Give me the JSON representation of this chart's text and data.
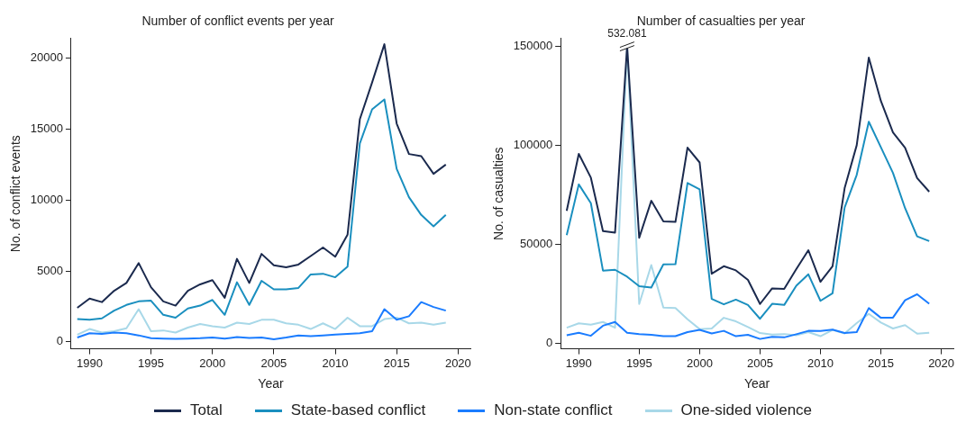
{
  "chart_data": [
    {
      "type": "line",
      "title": "Number of conflict events per year",
      "xlabel": "Year",
      "ylabel": "No. of conflict events",
      "x": [
        1989,
        1990,
        1991,
        1992,
        1993,
        1994,
        1995,
        1996,
        1997,
        1998,
        1999,
        2000,
        2001,
        2002,
        2003,
        2004,
        2005,
        2006,
        2007,
        2008,
        2009,
        2010,
        2011,
        2012,
        2013,
        2014,
        2015,
        2016,
        2017,
        2018,
        2019
      ],
      "series": [
        {
          "name": "Total",
          "color": "#1b2a4e",
          "values": [
            2400,
            3050,
            2800,
            3600,
            4150,
            5550,
            3850,
            2850,
            2550,
            3600,
            4050,
            4350,
            3100,
            5850,
            4150,
            6200,
            5400,
            5250,
            5450,
            6050,
            6650,
            6000,
            7550,
            15700,
            18300,
            21000,
            15400,
            13250,
            13100,
            11850,
            12500
          ]
        },
        {
          "name": "State-based conflict",
          "color": "#1a8fbf",
          "values": [
            1600,
            1550,
            1650,
            2200,
            2600,
            2850,
            2900,
            1900,
            1700,
            2350,
            2550,
            2950,
            1900,
            4200,
            2600,
            4300,
            3700,
            3700,
            3800,
            4750,
            4800,
            4550,
            5300,
            14000,
            16400,
            17100,
            12200,
            10200,
            8950,
            8150,
            8950
          ]
        },
        {
          "name": "Non-state conflict",
          "color": "#1a7cff",
          "values": [
            300,
            600,
            550,
            650,
            600,
            450,
            250,
            220,
            200,
            220,
            250,
            300,
            220,
            330,
            270,
            300,
            180,
            300,
            450,
            400,
            450,
            500,
            550,
            600,
            750,
            2300,
            1550,
            1800,
            2800,
            2450,
            2200
          ]
        },
        {
          "name": "One-sided violence",
          "color": "#a8d8e8",
          "values": [
            500,
            900,
            650,
            750,
            950,
            2300,
            750,
            800,
            650,
            1000,
            1250,
            1100,
            1000,
            1350,
            1250,
            1550,
            1550,
            1300,
            1200,
            900,
            1300,
            900,
            1700,
            1100,
            1100,
            1600,
            1700,
            1300,
            1350,
            1200,
            1350
          ]
        }
      ],
      "xlim": [
        1988.5,
        2021
      ],
      "xticks": [
        1990,
        1995,
        2000,
        2005,
        2010,
        2015,
        2020
      ],
      "ylim": [
        -500,
        21400
      ],
      "yticks": [
        0,
        5000,
        10000,
        15000,
        20000
      ],
      "grid": false,
      "legend": "bottom",
      "marker": "none",
      "line_style": "solid"
    },
    {
      "type": "line",
      "title": "Number of casualties per year",
      "xlabel": "Year",
      "ylabel": "No. of casualties",
      "x": [
        1989,
        1990,
        1991,
        1992,
        1993,
        1994,
        1995,
        1996,
        1997,
        1998,
        1999,
        2000,
        2001,
        2002,
        2003,
        2004,
        2005,
        2006,
        2007,
        2008,
        2009,
        2010,
        2011,
        2012,
        2013,
        2014,
        2015,
        2016,
        2017,
        2018,
        2019
      ],
      "series": [
        {
          "name": "Total",
          "color": "#1b2a4e",
          "values": [
            66800,
            95600,
            83600,
            56600,
            55800,
            150000,
            53200,
            71900,
            61500,
            61200,
            98800,
            91300,
            35000,
            38800,
            36700,
            31900,
            19700,
            27600,
            27300,
            37300,
            46900,
            30900,
            38800,
            78300,
            100000,
            144300,
            122400,
            106500,
            98800,
            83400,
            76500
          ]
        },
        {
          "name": "State-based conflict",
          "color": "#1a8fbf",
          "values": [
            54500,
            80200,
            70700,
            36600,
            37000,
            33500,
            28700,
            28000,
            39700,
            39800,
            80900,
            77700,
            22300,
            19500,
            21900,
            19200,
            12200,
            19800,
            19200,
            28900,
            34700,
            21300,
            25100,
            68500,
            85000,
            111900,
            99000,
            86000,
            68200,
            53900,
            51500
          ]
        },
        {
          "name": "Non-state conflict",
          "color": "#1a7cff",
          "values": [
            3900,
            5100,
            3600,
            8700,
            10600,
            5100,
            4400,
            4100,
            3400,
            3400,
            5500,
            6600,
            4800,
            6100,
            3400,
            4100,
            2000,
            3100,
            2800,
            4400,
            6100,
            6000,
            6700,
            5000,
            5500,
            17600,
            12700,
            12800,
            21600,
            24600,
            19800
          ]
        },
        {
          "name": "One-sided violence",
          "color": "#a8d8e8",
          "values": [
            7700,
            9900,
            9200,
            10600,
            7700,
            150000,
            19700,
            39400,
            17900,
            17600,
            12000,
            7000,
            7300,
            12700,
            10900,
            8000,
            5000,
            4200,
            4500,
            3900,
            5500,
            3400,
            6600,
            4800,
            10000,
            14700,
            10300,
            7300,
            9000,
            4700,
            5100
          ]
        }
      ],
      "annotations": [
        {
          "text": "532.081",
          "x": 1994,
          "y": 150000
        }
      ],
      "xlim": [
        1988.5,
        2021
      ],
      "xticks": [
        1990,
        1995,
        2000,
        2005,
        2010,
        2015,
        2020
      ],
      "ylim": [
        -3000,
        154000
      ],
      "yticks": [
        0,
        50000,
        100000,
        150000
      ],
      "grid": false,
      "legend": "bottom",
      "marker": "none",
      "line_style": "solid"
    }
  ]
}
